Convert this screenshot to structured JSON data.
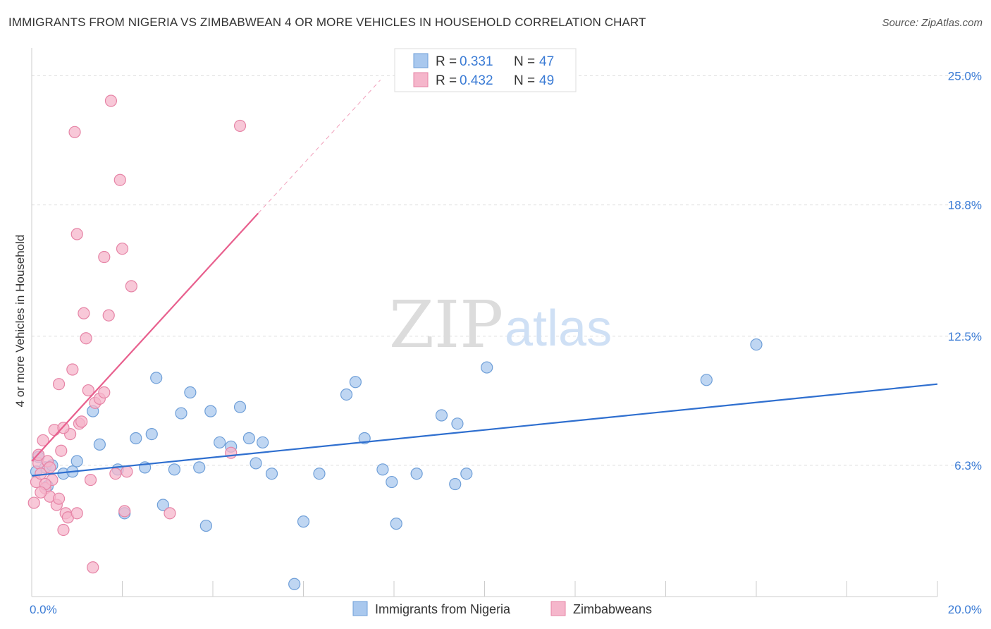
{
  "title": "IMMIGRANTS FROM NIGERIA VS ZIMBABWEAN 4 OR MORE VEHICLES IN HOUSEHOLD CORRELATION CHART",
  "source": "Source: ZipAtlas.com",
  "watermark": {
    "zip": "ZIP",
    "atlas": "atlas"
  },
  "colors": {
    "blue_fill": "#a9c8ee",
    "blue_stroke": "#6f9fd8",
    "blue_line": "#2f6fcf",
    "pink_fill": "#f5b6cb",
    "pink_stroke": "#e684a6",
    "pink_line": "#e8608e",
    "tick_text": "#3a7bd5",
    "grid": "#dddddd"
  },
  "legend": {
    "rows": [
      {
        "r_label": "R =",
        "r_value": "0.331",
        "n_label": "N =",
        "n_value": "47",
        "series": "blue"
      },
      {
        "r_label": "R =",
        "r_value": "0.432",
        "n_label": "N =",
        "n_value": "49",
        "series": "pink"
      }
    ]
  },
  "chart_data": {
    "type": "scatter",
    "title": "IMMIGRANTS FROM NIGERIA VS ZIMBABWEAN 4 OR MORE VEHICLES IN HOUSEHOLD CORRELATION CHART",
    "xlabel": "",
    "ylabel": "4 or more Vehicles in Household",
    "xlim": [
      0,
      20
    ],
    "ylim": [
      0,
      26
    ],
    "x_tick_labels": [
      {
        "value": 0,
        "label": "0.0%"
      },
      {
        "value": 20,
        "label": "20.0%"
      }
    ],
    "y_tick_labels": [
      {
        "value": 6.3,
        "label": "6.3%"
      },
      {
        "value": 12.5,
        "label": "12.5%"
      },
      {
        "value": 18.8,
        "label": "18.8%"
      },
      {
        "value": 25.0,
        "label": "25.0%"
      }
    ],
    "grid": true,
    "legend_position": "top-center",
    "series": [
      {
        "name": "Immigrants from Nigeria",
        "color": "#a9c8ee",
        "points": [
          [
            0.15,
            6.7
          ],
          [
            0.3,
            6.2
          ],
          [
            0.45,
            6.3
          ],
          [
            0.35,
            5.3
          ],
          [
            0.7,
            5.9
          ],
          [
            1.0,
            6.5
          ],
          [
            0.9,
            6.0
          ],
          [
            1.5,
            7.3
          ],
          [
            1.35,
            8.9
          ],
          [
            1.9,
            6.1
          ],
          [
            2.05,
            4.0
          ],
          [
            2.3,
            7.6
          ],
          [
            2.5,
            6.2
          ],
          [
            2.65,
            7.8
          ],
          [
            2.75,
            10.5
          ],
          [
            2.9,
            4.4
          ],
          [
            3.15,
            6.1
          ],
          [
            3.3,
            8.8
          ],
          [
            3.5,
            9.8
          ],
          [
            3.7,
            6.2
          ],
          [
            3.85,
            3.4
          ],
          [
            3.95,
            8.9
          ],
          [
            4.15,
            7.4
          ],
          [
            4.4,
            7.2
          ],
          [
            4.6,
            9.1
          ],
          [
            4.8,
            7.6
          ],
          [
            4.95,
            6.4
          ],
          [
            5.1,
            7.4
          ],
          [
            5.3,
            5.9
          ],
          [
            5.8,
            0.6
          ],
          [
            6.0,
            3.6
          ],
          [
            6.35,
            5.9
          ],
          [
            6.95,
            9.7
          ],
          [
            7.15,
            10.3
          ],
          [
            7.35,
            7.6
          ],
          [
            7.75,
            6.1
          ],
          [
            7.95,
            5.5
          ],
          [
            8.05,
            3.5
          ],
          [
            8.5,
            5.9
          ],
          [
            9.05,
            8.7
          ],
          [
            9.35,
            5.4
          ],
          [
            9.4,
            8.3
          ],
          [
            9.6,
            5.9
          ],
          [
            10.05,
            11.0
          ],
          [
            14.9,
            10.4
          ],
          [
            16.0,
            12.1
          ],
          [
            0.1,
            6.0
          ]
        ]
      },
      {
        "name": "Zimbabweans",
        "color": "#f5b6cb",
        "points": [
          [
            0.05,
            4.5
          ],
          [
            0.1,
            5.5
          ],
          [
            0.15,
            6.4
          ],
          [
            0.2,
            5.9
          ],
          [
            0.25,
            7.5
          ],
          [
            0.3,
            5.2
          ],
          [
            0.35,
            6.5
          ],
          [
            0.4,
            4.8
          ],
          [
            0.45,
            5.6
          ],
          [
            0.55,
            4.4
          ],
          [
            0.6,
            4.7
          ],
          [
            0.65,
            7.0
          ],
          [
            0.7,
            3.2
          ],
          [
            0.75,
            4.0
          ],
          [
            0.8,
            3.8
          ],
          [
            0.85,
            7.8
          ],
          [
            0.9,
            10.9
          ],
          [
            0.95,
            22.3
          ],
          [
            1.0,
            17.4
          ],
          [
            1.05,
            8.3
          ],
          [
            1.1,
            8.4
          ],
          [
            1.15,
            13.6
          ],
          [
            1.2,
            12.4
          ],
          [
            1.25,
            9.9
          ],
          [
            1.3,
            5.6
          ],
          [
            1.35,
            1.4
          ],
          [
            1.4,
            9.3
          ],
          [
            1.5,
            9.5
          ],
          [
            1.6,
            16.3
          ],
          [
            1.7,
            13.5
          ],
          [
            1.75,
            23.8
          ],
          [
            1.85,
            5.9
          ],
          [
            1.95,
            20.0
          ],
          [
            2.0,
            16.7
          ],
          [
            2.05,
            4.1
          ],
          [
            2.2,
            14.9
          ],
          [
            3.05,
            4.0
          ],
          [
            4.4,
            6.9
          ],
          [
            4.6,
            22.6
          ],
          [
            0.5,
            8.0
          ],
          [
            0.6,
            10.2
          ],
          [
            0.4,
            6.2
          ],
          [
            0.3,
            5.4
          ],
          [
            0.2,
            5.0
          ],
          [
            0.15,
            6.8
          ],
          [
            0.7,
            8.1
          ],
          [
            1.0,
            4.0
          ],
          [
            2.1,
            6.0
          ],
          [
            1.6,
            9.8
          ]
        ]
      }
    ],
    "trend_lines": [
      {
        "series": "Immigrants from Nigeria",
        "x": [
          0,
          20
        ],
        "y": [
          5.8,
          10.2
        ],
        "style": "solid"
      },
      {
        "series": "Zimbabweans",
        "x": [
          0,
          5.0
        ],
        "y": [
          6.5,
          18.4
        ],
        "style": "solid"
      },
      {
        "series": "Zimbabweans",
        "x": [
          5.0,
          7.7
        ],
        "y": [
          18.4,
          24.8
        ],
        "style": "dashed"
      }
    ]
  }
}
